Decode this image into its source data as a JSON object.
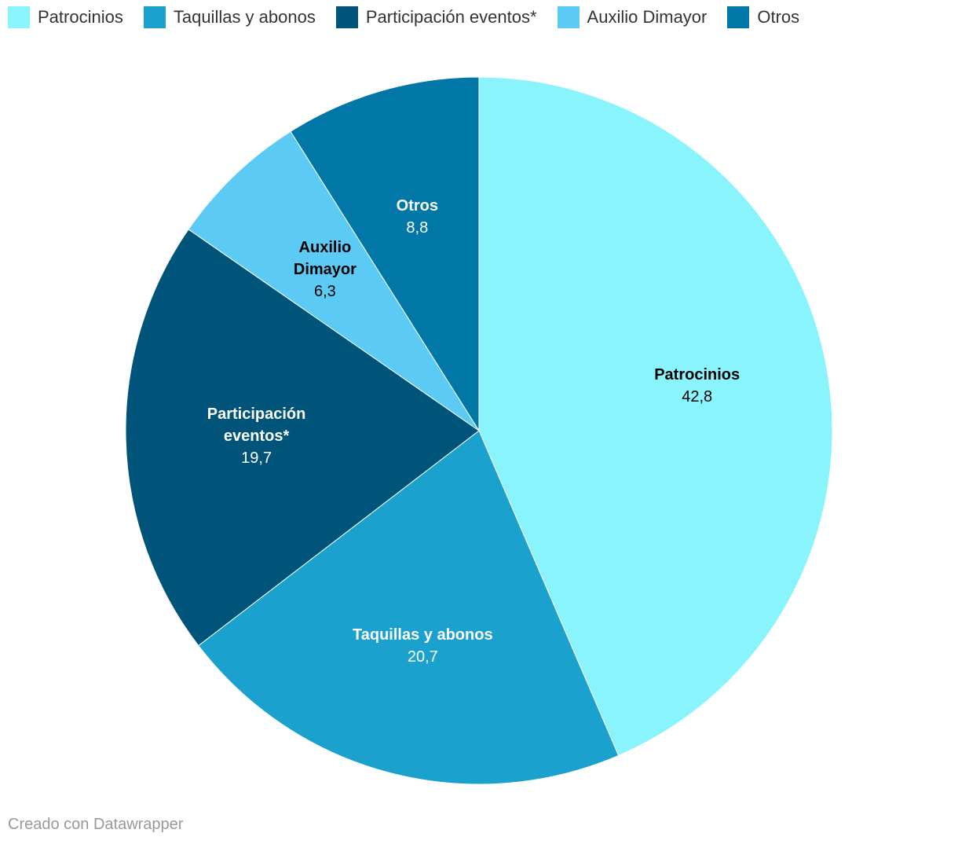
{
  "chart_data": {
    "type": "pie",
    "categories": [
      "Patrocinios",
      "Taquillas y abonos",
      "Participación eventos*",
      "Auxilio Dimayor",
      "Otros"
    ],
    "values": [
      42.8,
      20.7,
      19.7,
      6.3,
      8.8
    ],
    "value_labels": [
      "42,8",
      "20,7",
      "19,7",
      "6,3",
      "8,8"
    ],
    "colors": [
      "#8af4fd",
      "#1aa1cd",
      "#005479",
      "#5bcaf5",
      "#0077a6"
    ],
    "legend": "top-left",
    "credit": "Creado con Datawrapper"
  }
}
